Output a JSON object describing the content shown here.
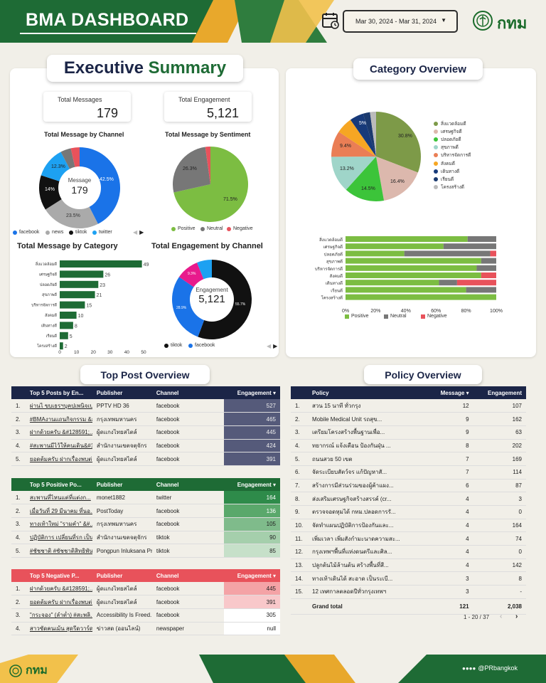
{
  "header": {
    "title": "BMA DASHBOARD",
    "date_range": "Mar 30, 2024 - Mar 31, 2024",
    "logo_text": "กทม"
  },
  "executive": {
    "title_part1": "Executive",
    "title_part2": "Summary",
    "total_messages_label": "Total Messages",
    "total_messages_value": "179",
    "total_engagement_label": "Total Engagement",
    "total_engagement_value": "5,121"
  },
  "channel_chart": {
    "title": "Total Message by Channel",
    "center_label": "Message",
    "center_value": "179",
    "labels": [
      "42.5%",
      "23.5%",
      "14%",
      "12.3%"
    ],
    "legend": [
      "facebook",
      "news",
      "tiktok",
      "twitter"
    ]
  },
  "sentiment_chart": {
    "title": "Total Message by Sentiment",
    "labels": [
      "71.5%",
      "26.3%"
    ],
    "legend": [
      "Positive",
      "Neutral",
      "Negative"
    ]
  },
  "category_bar": {
    "title": "Total Message by Category",
    "categories": [
      "สิ่งแวดล้อมดี",
      "เศรษฐกิจดี",
      "ปลอดภัยดี",
      "สุขภาพดี",
      "บริหารจัดการดี",
      "สังคมดี",
      "เดินทางดี",
      "เรียนดี",
      "โครงสร้างดี"
    ],
    "values": [
      49,
      26,
      23,
      21,
      15,
      10,
      8,
      5,
      2
    ],
    "ticks": [
      "0",
      "10",
      "20",
      "30",
      "40",
      "50"
    ]
  },
  "engagement_channel": {
    "title": "Total Engagement by Channel",
    "center_label": "Engagement",
    "center_value": "5,121",
    "labels": [
      "55.7%",
      "28.9%",
      "9.3%"
    ],
    "legend": [
      "tiktok",
      "facebook"
    ]
  },
  "category_overview": {
    "title": "Category Overview",
    "pie_labels": [
      "30.8%",
      "16.4%",
      "14.5%",
      "13.2%",
      "9.4%",
      "5%"
    ],
    "legend": [
      "สิ่งแวดล้อมดี",
      "เศรษฐกิจดี",
      "ปลอดภัยดี",
      "สุขภาพดี",
      "บริหารจัดการดี",
      "สังคมดี",
      "เดินทางดี",
      "เรียนดี",
      "โครงสร้างดี"
    ],
    "stack_categories": [
      "สิ่งแวดล้อมดี",
      "เศรษฐกิจดี",
      "ปลอดภัยดี",
      "สุขภาพดี",
      "บริหารจัดการดี",
      "สังคมดี",
      "เดินทางดี",
      "เรียนดี",
      "โครงสร้างดี"
    ],
    "stack_ticks": [
      "0%",
      "20%",
      "40%",
      "60%",
      "80%",
      "100%"
    ],
    "stack_legend": [
      "Positive",
      "Neutral",
      "Negative"
    ]
  },
  "top_post": {
    "title": "Top Post Overview",
    "top5": {
      "headers": [
        "Top 5 Posts by En...",
        "Publisher",
        "Channel",
        "Engagement ▾"
      ],
      "rows": [
        [
          "1.",
          "ผ่านไ ขบเธรฯบุคปเพนิจเบร่า...",
          "PPTV HD 36",
          "facebook",
          "527"
        ],
        [
          "2.",
          "#BMAงานแถนกิจกรรม &#...",
          "กรุงเทพมหานคร",
          "facebook",
          "465"
        ],
        [
          "3.",
          "ฝากด้วยครับ &#128591;...",
          "ผู้ดแกงไทยสไตล์",
          "facebook",
          "445"
        ],
        [
          "4.",
          "#สะพานมีไว้ให้คนเดิน&#1...",
          "สำนักงานเขตจตุจักร",
          "facebook",
          "424"
        ],
        [
          "5.",
          "ยอดต้มครับ ฝากเรื่องพบต่อ...",
          "ผู้ดแกงไทยสไตล์",
          "facebook",
          "391"
        ]
      ]
    },
    "positive": {
      "headers": [
        "Top 5 Positive Po...",
        "Publisher",
        "Channel",
        "Engagement ▾"
      ],
      "rows": [
        [
          "1.",
          "สะพานที่ไหนแต่ที่แต่งก...",
          "monet1882",
          "twitter",
          "164"
        ],
        [
          "2.",
          "เมื่อวันที่ 29 มีนาคม ที่นอ...",
          "PostToday",
          "facebook",
          "136"
        ],
        [
          "3.",
          "ทางเท้าใหม่ \"รามคำ\" &#...",
          "กรุงเทพมหานคร",
          "facebook",
          "105"
        ],
        [
          "4.",
          "ปฏิบัติการ เปลี่ยนที่รก เป็น...",
          "สำนักงานเขตจตุจักร",
          "tiktok",
          "90"
        ],
        [
          "5.",
          "#ชัชชาติ #ชัชชาติสิทธิพันธุ์...",
          "Pongpun Inluksana Pr",
          "tiktok",
          "85"
        ]
      ]
    },
    "negative": {
      "headers": [
        "Top 5 Negative P...",
        "Publisher",
        "Channel",
        "Engagement ▾"
      ],
      "rows": [
        [
          "1.",
          "ฝากด้วยครับ &#128591;...",
          "ผู้ดแกงไทยสไตล์",
          "facebook",
          "445"
        ],
        [
          "2.",
          "ยอดต้มครับ ฝากเรื่องพบต่อ...",
          "ผู้ดแกงไทยสไตล์",
          "facebook",
          "391"
        ],
        [
          "3.",
          "\"กระจอง\" (ลำต่ำ) #สะพลิ...",
          "Accessibility Is Freed...",
          "facebook",
          "305"
        ],
        [
          "4.",
          "สาวซัดคนเม้น สุดรีดวาร์ด",
          "ข่าวสด (ออนไลน์)",
          "newspaper",
          "null"
        ]
      ]
    }
  },
  "policy": {
    "title": "Policy Overview",
    "headers": [
      "Policy",
      "Message ▾",
      "Engagement"
    ],
    "rows": [
      [
        "1.",
        "สวน 15 นาที ทั่วกรุง",
        "12",
        "107"
      ],
      [
        "2.",
        "Mobile Medical Unit รถสุข...",
        "9",
        "162"
      ],
      [
        "3.",
        "เตรียมโครงสร้างพื้นฐานเพื่อ...",
        "9",
        "63"
      ],
      [
        "4.",
        "ทยากรณ์ แจ้งเตือน ป้องกันฝุ่น ...",
        "8",
        "202"
      ],
      [
        "5.",
        "ถนนสวย 50 เขต",
        "7",
        "169"
      ],
      [
        "6.",
        "จัดระเบียบสัตว์จร แก้ปัญหาสั...",
        "7",
        "114"
      ],
      [
        "7.",
        "สร้างการมีส่วนร่วมของผู้ค้าแผง...",
        "6",
        "87"
      ],
      [
        "8.",
        "ส่งเสริมเศรษฐกิจสร้างสรรค์ (cr...",
        "4",
        "3"
      ],
      [
        "9.",
        "ตรวจจอดหุมได้ กทม.ปลอดการรั...",
        "4",
        "0"
      ],
      [
        "10.",
        "จัดทำแผนปฏิบัติการป้องกันและ...",
        "4",
        "164"
      ],
      [
        "11.",
        "เพิ่มเวลา เพิ่มสังกำมะนาดความสะ...",
        "4",
        "74"
      ],
      [
        "12.",
        "กรุงเทพฯพื้นที่แห่งดนตรีและศิล...",
        "4",
        "0"
      ],
      [
        "13.",
        "ปลูกต้นไม้ล้านต้น สร้างพื้นที่สี...",
        "4",
        "142"
      ],
      [
        "14.",
        "ทางเท้าเดินได้ สะอาด เป็นระเบี...",
        "3",
        "8"
      ],
      [
        "15.",
        "12 เทศกาลตลอดปีทั่วกรุงเทพฯ",
        "3",
        "-"
      ]
    ],
    "grand_total_label": "Grand total",
    "grand_total_message": "121",
    "grand_total_engagement": "2,038",
    "pagination": "1 - 20 / 37"
  },
  "footer": {
    "logo_text": "กทม",
    "social": "@PRbangkok"
  }
}
